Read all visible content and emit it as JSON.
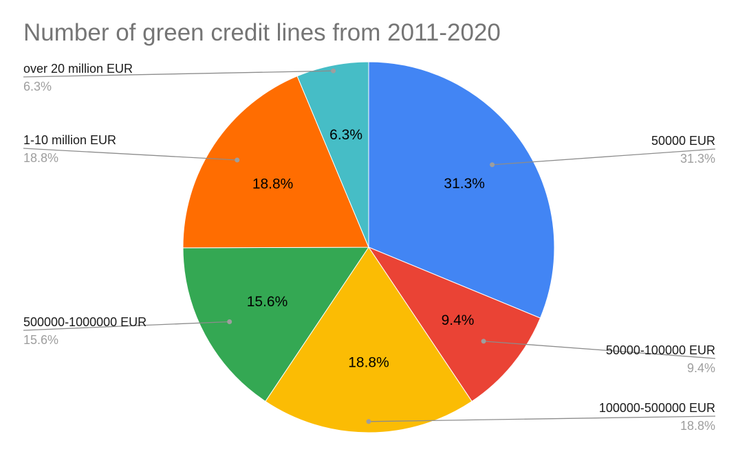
{
  "chart_data": {
    "type": "pie",
    "title": "Number of green credit lines from 2011-2020",
    "slices": [
      {
        "label": "50000 EUR",
        "value": 31.3,
        "display": "31.3%",
        "color": "#4285f4"
      },
      {
        "label": "50000-100000 EUR",
        "value": 9.4,
        "display": "9.4%",
        "color": "#ea4335"
      },
      {
        "label": "100000-500000 EUR",
        "value": 18.8,
        "display": "18.8%",
        "color": "#fbbc04"
      },
      {
        "label": "500000-1000000 EUR",
        "value": 15.6,
        "display": "15.6%",
        "color": "#34a853"
      },
      {
        "label": "1-10 million EUR",
        "value": 18.8,
        "display": "18.8%",
        "color": "#ff6d01"
      },
      {
        "label": "over 20 million EUR",
        "value": 6.3,
        "display": "6.3%",
        "color": "#46bdc6"
      }
    ]
  }
}
